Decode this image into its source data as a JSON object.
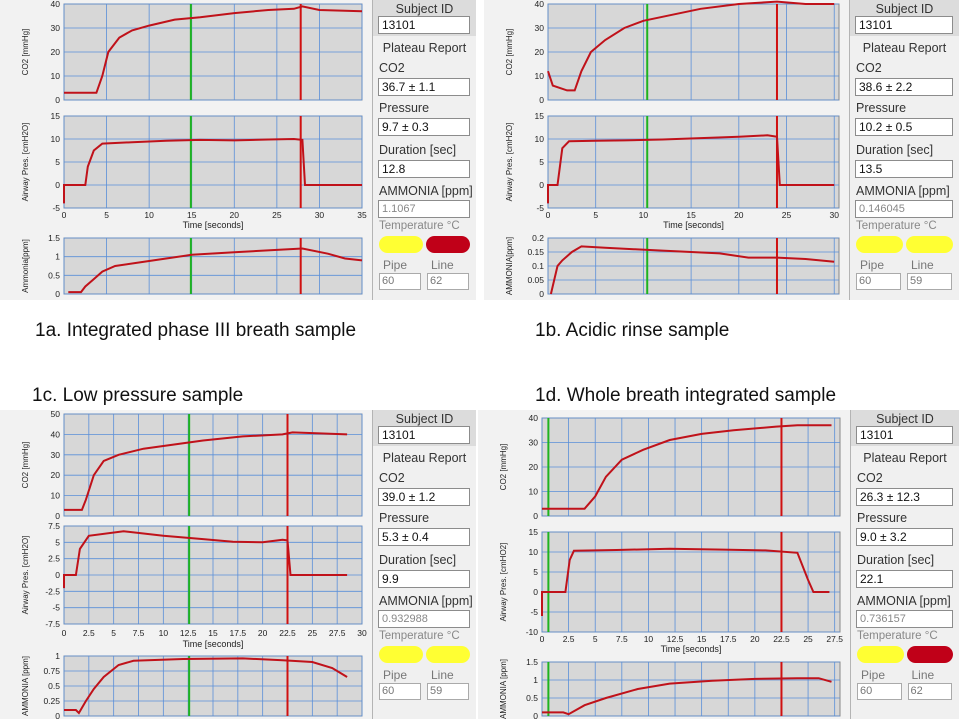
{
  "captions": {
    "a": "1a. Integrated phase III breath sample",
    "b": "1b. Acidic rinse sample",
    "c": "1c. Low pressure sample",
    "d": "1d.  Whole breath integrated sample"
  },
  "colors": {
    "trace": "#c0121a",
    "green_marker": "#1fb31f",
    "red_marker": "#d01010",
    "grid": "#5a8fd8",
    "plot_bg": "#d7d7d7",
    "led_yellow": "#ffff33",
    "led_red": "#c00018"
  },
  "side_labels": {
    "subject_id": "Subject ID",
    "plateau": "Plateau Report",
    "co2": "CO2",
    "pressure": "Pressure",
    "duration": "Duration [sec]",
    "ammonia": "AMMONIA [ppm]",
    "temperature": "Temperature °C",
    "pipe": "Pipe",
    "line": "Line"
  },
  "panels": [
    {
      "id": "a",
      "subject": "13101",
      "co2": "36.7 ± 1.1",
      "pressure": "9.7 ± 0.3",
      "duration": "12.8",
      "ammonia": "1.1067",
      "pipe": "60",
      "line": "62",
      "led_right": "red",
      "co2_ylabel": "CO2 [mmHg]",
      "p_ylabel": "Airway Pres. [cmH2O]",
      "nh3_ylabel": "Ammonia[ppm]",
      "xlabel": "Time [seconds]"
    },
    {
      "id": "b",
      "subject": "13101",
      "co2": "38.6 ± 2.2",
      "pressure": "10.2 ± 0.5",
      "duration": "13.5",
      "ammonia": "0.146045",
      "pipe": "60",
      "line": "59",
      "led_right": "yellow",
      "co2_ylabel": "CO2 [mmHg]",
      "p_ylabel": "Airway Pres. [cmH2O]",
      "nh3_ylabel": "AMMONIA[ppm]",
      "xlabel": "Time [seconds]"
    },
    {
      "id": "c",
      "subject": "13101",
      "co2": "39.0 ± 1.2",
      "pressure": "5.3 ± 0.4",
      "duration": "9.9",
      "ammonia": "0.932988",
      "pipe": "60",
      "line": "59",
      "led_right": "yellow",
      "co2_ylabel": "CO2 [mmHg]",
      "p_ylabel": "Airway Pres. [cmH2O]",
      "nh3_ylabel": "AMMONIA [ppm]",
      "xlabel": "Time [seconds]"
    },
    {
      "id": "d",
      "subject": "13101",
      "co2": "26.3 ± 12.3",
      "pressure": "9.0 ± 3.2",
      "duration": "22.1",
      "ammonia": "0.736157",
      "pipe": "60",
      "line": "62",
      "led_right": "red",
      "co2_ylabel": "CO2 [mmHg]",
      "p_ylabel": "Airway Pres. [cmHO2]",
      "nh3_ylabel": "AMMONIA [ppm]",
      "xlabel": "Time [seconds]"
    }
  ],
  "chart_data": [
    {
      "panel": "a",
      "type": "line",
      "xlabel": "Time [seconds]",
      "x_ticks": [
        "0",
        "5",
        "10",
        "15",
        "20",
        "25",
        "30",
        "35"
      ],
      "xlim": [
        0,
        35
      ],
      "markers": {
        "green": 14.9,
        "red": 27.8
      },
      "co2": {
        "ylim": [
          0,
          40
        ],
        "y_ticks": [
          "0",
          "10",
          "20",
          "30",
          "40"
        ],
        "points": [
          [
            0,
            3
          ],
          [
            3.8,
            3
          ],
          [
            4.5,
            10
          ],
          [
            5.2,
            20
          ],
          [
            6.5,
            26
          ],
          [
            8,
            29
          ],
          [
            10,
            31
          ],
          [
            13,
            33.5
          ],
          [
            16,
            34.5
          ],
          [
            20,
            36.2
          ],
          [
            24,
            37.5
          ],
          [
            27,
            38
          ],
          [
            28,
            39
          ],
          [
            30,
            37.5
          ],
          [
            35,
            37
          ]
        ]
      },
      "pressure": {
        "ylim": [
          -5,
          15
        ],
        "y_ticks": [
          "-5",
          "0",
          "5",
          "10",
          "15"
        ],
        "points": [
          [
            0,
            -4
          ],
          [
            0,
            0
          ],
          [
            2.5,
            0
          ],
          [
            2.8,
            4
          ],
          [
            3.5,
            7.5
          ],
          [
            4.5,
            9
          ],
          [
            8,
            9.3
          ],
          [
            12,
            9.6
          ],
          [
            16,
            9.8
          ],
          [
            20,
            9.7
          ],
          [
            24,
            9.9
          ],
          [
            27,
            10
          ],
          [
            28,
            9.8
          ],
          [
            28.3,
            0
          ],
          [
            35,
            0
          ]
        ]
      },
      "ammonia": {
        "ylim": [
          0,
          1.5
        ],
        "y_ticks": [
          "0",
          "0.5",
          "1",
          "1.5"
        ],
        "points": [
          [
            0.5,
            0.05
          ],
          [
            2,
            0.05
          ],
          [
            2.5,
            0.2
          ],
          [
            3.5,
            0.4
          ],
          [
            4.5,
            0.6
          ],
          [
            6,
            0.75
          ],
          [
            9,
            0.85
          ],
          [
            12,
            0.95
          ],
          [
            15,
            1.05
          ],
          [
            20,
            1.12
          ],
          [
            25,
            1.18
          ],
          [
            28,
            1.22
          ],
          [
            31,
            1.08
          ],
          [
            33,
            0.95
          ],
          [
            35,
            0.9
          ]
        ]
      }
    },
    {
      "panel": "b",
      "type": "line",
      "xlabel": "Time [seconds]",
      "x_ticks": [
        "0",
        "5",
        "10",
        "15",
        "20",
        "25",
        "30"
      ],
      "xlim": [
        0,
        30.5
      ],
      "markers": {
        "green": 10.4,
        "red": 24
      },
      "co2": {
        "ylim": [
          0,
          40
        ],
        "y_ticks": [
          "0",
          "10",
          "20",
          "30",
          "40"
        ],
        "points": [
          [
            0,
            12
          ],
          [
            0.5,
            6
          ],
          [
            2,
            4
          ],
          [
            2.8,
            4
          ],
          [
            3.5,
            12
          ],
          [
            4.5,
            20
          ],
          [
            6,
            25
          ],
          [
            8,
            30
          ],
          [
            10,
            33
          ],
          [
            13,
            35.5
          ],
          [
            16,
            38
          ],
          [
            20,
            40
          ],
          [
            24,
            41
          ],
          [
            27,
            40
          ],
          [
            30,
            40
          ]
        ]
      },
      "pressure": {
        "ylim": [
          -5,
          15
        ],
        "y_ticks": [
          "-5",
          "0",
          "5",
          "10",
          "15"
        ],
        "points": [
          [
            0,
            -4
          ],
          [
            0,
            0
          ],
          [
            1,
            0
          ],
          [
            1.5,
            8
          ],
          [
            2.2,
            9.5
          ],
          [
            5,
            9.6
          ],
          [
            8,
            9.7
          ],
          [
            12,
            9.9
          ],
          [
            16,
            10.2
          ],
          [
            20,
            10.5
          ],
          [
            23,
            10.8
          ],
          [
            24,
            10.5
          ],
          [
            24.3,
            0
          ],
          [
            30,
            0
          ]
        ]
      },
      "ammonia": {
        "ylim": [
          0,
          0.2
        ],
        "y_ticks": [
          "0",
          "0.05",
          "0.1",
          "0.15",
          "0.2"
        ],
        "points": [
          [
            0.3,
            0
          ],
          [
            1,
            0.1
          ],
          [
            1.5,
            0.12
          ],
          [
            2.5,
            0.15
          ],
          [
            3.5,
            0.17
          ],
          [
            6,
            0.165
          ],
          [
            9,
            0.16
          ],
          [
            12,
            0.155
          ],
          [
            15,
            0.15
          ],
          [
            18,
            0.145
          ],
          [
            21,
            0.13
          ],
          [
            24,
            0.13
          ],
          [
            27,
            0.125
          ],
          [
            30,
            0.115
          ]
        ]
      }
    },
    {
      "panel": "c",
      "type": "line",
      "xlabel": "Time [seconds]",
      "x_ticks": [
        "0",
        "2.5",
        "5",
        "7.5",
        "10",
        "12.5",
        "15",
        "17.5",
        "20",
        "22.5",
        "25",
        "27.5",
        "30"
      ],
      "xlim": [
        0,
        30
      ],
      "markers": {
        "green": 12.6,
        "red": 22.5
      },
      "co2": {
        "ylim": [
          0,
          50
        ],
        "y_ticks": [
          "0",
          "10",
          "20",
          "30",
          "40",
          "50"
        ],
        "points": [
          [
            0,
            3
          ],
          [
            1.8,
            3
          ],
          [
            2.2,
            8
          ],
          [
            3,
            20
          ],
          [
            4,
            27
          ],
          [
            5.5,
            30
          ],
          [
            8,
            33
          ],
          [
            11,
            35
          ],
          [
            14,
            37
          ],
          [
            18,
            39
          ],
          [
            22,
            40
          ],
          [
            23,
            41
          ],
          [
            28.5,
            40
          ]
        ]
      },
      "pressure": {
        "ylim": [
          -7.5,
          7.5
        ],
        "y_ticks": [
          "-7.5",
          "-5",
          "-2.5",
          "0",
          "2.5",
          "5",
          "7.5"
        ],
        "points": [
          [
            0,
            -2
          ],
          [
            0,
            0
          ],
          [
            1.2,
            0
          ],
          [
            1.6,
            4
          ],
          [
            2.5,
            6
          ],
          [
            6,
            6.7
          ],
          [
            10,
            6
          ],
          [
            14,
            5.5
          ],
          [
            17,
            5.1
          ],
          [
            20,
            5.0
          ],
          [
            22,
            5.4
          ],
          [
            22.5,
            5.3
          ],
          [
            22.8,
            0
          ],
          [
            28.5,
            0
          ]
        ]
      },
      "ammonia": {
        "ylim": [
          0,
          1
        ],
        "y_ticks": [
          "0",
          "0.25",
          "0.5",
          "0.75",
          "1"
        ],
        "points": [
          [
            0,
            0.1
          ],
          [
            1.2,
            0.1
          ],
          [
            1.5,
            0.05
          ],
          [
            2.2,
            0.25
          ],
          [
            3,
            0.45
          ],
          [
            4,
            0.65
          ],
          [
            5.5,
            0.85
          ],
          [
            7,
            0.92
          ],
          [
            12,
            0.95
          ],
          [
            18,
            0.96
          ],
          [
            22,
            0.93
          ],
          [
            25,
            0.9
          ],
          [
            27,
            0.8
          ],
          [
            28.5,
            0.65
          ]
        ]
      }
    },
    {
      "panel": "d",
      "type": "line",
      "xlabel": "Time [seconds]",
      "x_ticks": [
        "0",
        "2.5",
        "5",
        "7.5",
        "10",
        "12.5",
        "15",
        "17.5",
        "20",
        "22.5",
        "25",
        "27.5"
      ],
      "xlim": [
        0,
        28
      ],
      "markers": {
        "green": 0.6,
        "red": 22.5
      },
      "co2": {
        "ylim": [
          0,
          40
        ],
        "y_ticks": [
          "0",
          "10",
          "20",
          "30",
          "40"
        ],
        "points": [
          [
            0,
            3
          ],
          [
            4,
            3
          ],
          [
            5,
            8
          ],
          [
            6,
            16
          ],
          [
            7.5,
            23
          ],
          [
            9.5,
            27
          ],
          [
            12,
            31
          ],
          [
            15,
            33.5
          ],
          [
            18,
            35
          ],
          [
            22,
            36.5
          ],
          [
            24,
            37
          ],
          [
            27.2,
            37
          ]
        ]
      },
      "pressure": {
        "ylim": [
          -10,
          15
        ],
        "y_ticks": [
          "-10",
          "-5",
          "0",
          "5",
          "10",
          "15"
        ],
        "points": [
          [
            0,
            -6
          ],
          [
            0,
            0
          ],
          [
            2.2,
            0
          ],
          [
            2.6,
            8
          ],
          [
            3,
            10.3
          ],
          [
            7,
            10.5
          ],
          [
            12,
            10.8
          ],
          [
            17,
            10.6
          ],
          [
            21,
            10.4
          ],
          [
            24,
            9.8
          ],
          [
            25,
            3
          ],
          [
            25.5,
            0
          ],
          [
            27,
            0
          ]
        ]
      },
      "ammonia": {
        "ylim": [
          0,
          1.5
        ],
        "y_ticks": [
          "0",
          "0.5",
          "1",
          "1.5"
        ],
        "points": [
          [
            0,
            0.1
          ],
          [
            2,
            0.1
          ],
          [
            2.5,
            0.05
          ],
          [
            4,
            0.3
          ],
          [
            6,
            0.5
          ],
          [
            9,
            0.75
          ],
          [
            12,
            0.9
          ],
          [
            16,
            0.98
          ],
          [
            20,
            1.03
          ],
          [
            24,
            1.05
          ],
          [
            26,
            1.05
          ],
          [
            27.2,
            0.95
          ]
        ]
      }
    }
  ]
}
